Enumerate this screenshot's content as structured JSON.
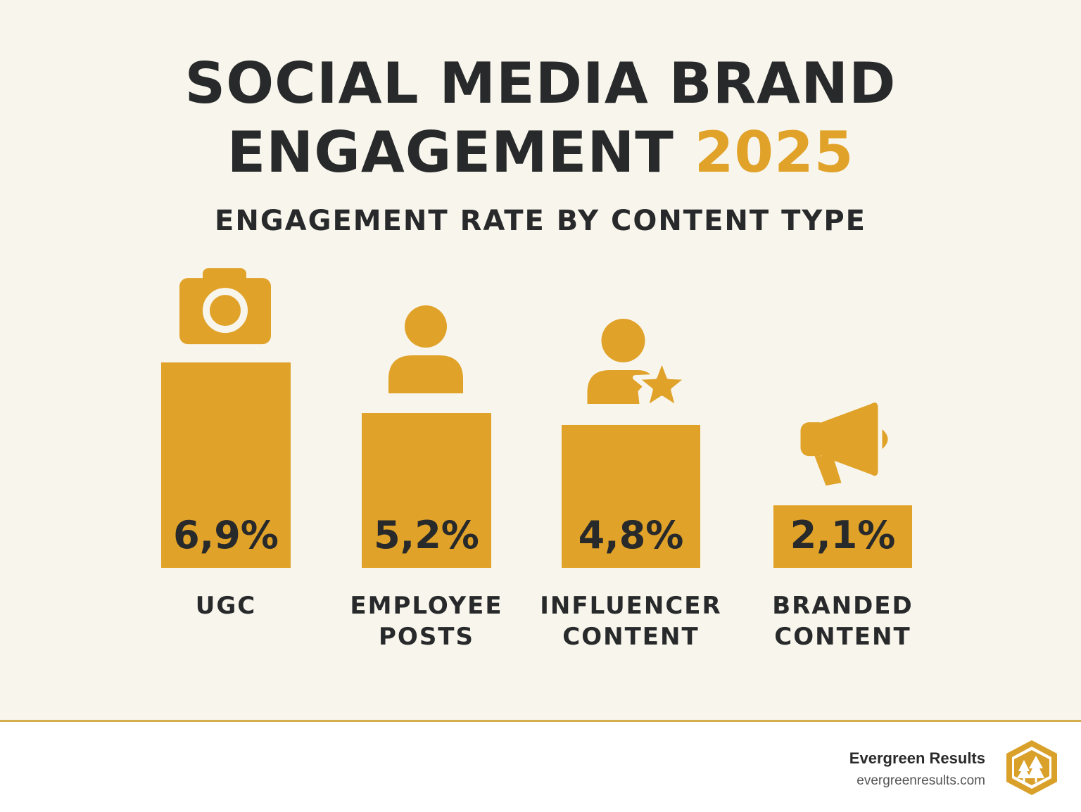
{
  "title": {
    "line1": "SOCIAL MEDIA BRAND",
    "line2_main": "ENGAGEMENT",
    "line2_accent": "2025"
  },
  "colors": {
    "accent": "#e0a229",
    "text": "#27292a",
    "background": "#f8f5ec"
  },
  "chart_data": {
    "type": "bar",
    "title": "ENGAGEMENT RATE BY CONTENT TYPE",
    "categories": [
      [
        "UGC"
      ],
      [
        "EMPLOYEE",
        "POSTS"
      ],
      [
        "INFLUENCER",
        "CONTENT"
      ],
      [
        "BRANDED",
        "CONTENT"
      ]
    ],
    "values": [
      6.9,
      5.2,
      4.8,
      2.1
    ],
    "value_labels": [
      "6,9%",
      "5,2%",
      "4,8%",
      "2,1%"
    ],
    "icons": [
      "camera-icon",
      "person-icon",
      "person-star-icon",
      "megaphone-icon"
    ],
    "unit": "%",
    "grid": false,
    "legend": "none"
  },
  "footer": {
    "brand_name": "Evergreen Results",
    "brand_url": "evergreenresults.com"
  }
}
